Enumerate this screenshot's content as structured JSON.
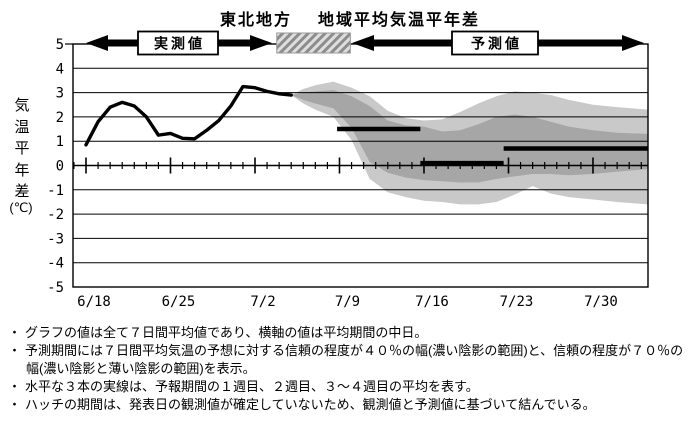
{
  "title": {
    "region": "東北地方",
    "name": "地域平均気温平年差"
  },
  "period_labels": {
    "observed": "実測値",
    "forecast": "予測値"
  },
  "y_axis": {
    "title_chars": [
      "気",
      "温",
      "平",
      "年",
      "差"
    ],
    "unit": "(℃)"
  },
  "notes_bullet": "・",
  "notes": [
    "グラフの値は全て７日間平均値であり、横軸の値は平均期間の中日。",
    "予測期間には７日間平均気温の予想に対する信頼の程度が４０％の幅(濃い陰影の範囲)と、信頼の程度が７０％の幅(濃い陰影と薄い陰影の範囲)を表示。",
    "水平な３本の実線は、予報期間の１週目、２週目、３～４週目の平均を表す。",
    "ハッチの期間は、発表日の観測値が確定していないため、観測値と予測値に基づいて結んでいる。"
  ],
  "chart_data": {
    "type": "line",
    "title": "東北地方 地域平均気温平年差",
    "ylabel": "気温平年差(℃)",
    "ylim": [
      -5,
      5
    ],
    "y_ticks": [
      5,
      4,
      3,
      2,
      1,
      0,
      -1,
      -2,
      -3,
      -4,
      -5
    ],
    "grid": true,
    "x_tick_labels": [
      "6/18",
      "6/25",
      "7/2",
      "7/9",
      "7/16",
      "7/23",
      "7/30"
    ],
    "x_tick_days": [
      0,
      7,
      14,
      21,
      28,
      35,
      42
    ],
    "x_day_range": [
      -1,
      46.55
    ],
    "observed": {
      "name": "実測値(7日間平均気温平年差)",
      "days": [
        0,
        1,
        2,
        3,
        4,
        5,
        6,
        7,
        8,
        9,
        10,
        11,
        12,
        13,
        14,
        15,
        16,
        17
      ],
      "values": [
        0.85,
        1.8,
        2.4,
        2.6,
        2.45,
        2.0,
        1.25,
        1.32,
        1.12,
        1.1,
        1.45,
        1.85,
        2.45,
        3.25,
        3.2,
        3.05,
        2.95,
        2.9
      ]
    },
    "forecast_bands": {
      "name_40": "信頼度４０％の幅(濃い陰影)",
      "name_70": "信頼度７０％の幅(濃い陰影と薄い陰影)",
      "days": [
        17,
        18,
        19,
        20.5,
        22,
        23.5,
        25,
        26.5,
        28,
        29.5,
        31,
        32.5,
        34,
        35.5,
        37,
        38.5,
        40,
        42,
        44,
        46.55
      ],
      "light_top": [
        2.9,
        3.15,
        3.3,
        3.45,
        3.2,
        2.85,
        2.25,
        1.95,
        1.85,
        1.9,
        2.2,
        2.55,
        2.85,
        3.05,
        3.0,
        2.9,
        2.7,
        2.5,
        2.4,
        2.3
      ],
      "dark_top": [
        2.9,
        3.0,
        3.05,
        3.1,
        2.85,
        2.45,
        1.85,
        1.65,
        1.6,
        1.4,
        1.45,
        1.7,
        2.0,
        2.1,
        2.0,
        1.8,
        1.6,
        1.45,
        1.35,
        1.3
      ],
      "dark_bottom": [
        2.9,
        2.7,
        2.55,
        2.35,
        1.55,
        0.15,
        -0.3,
        -0.5,
        -0.6,
        -0.65,
        -0.7,
        -0.7,
        -0.55,
        -0.45,
        -0.35,
        -0.35,
        -0.4,
        -0.35,
        -0.25,
        -0.15
      ],
      "light_bottom": [
        2.9,
        2.55,
        2.3,
        2.0,
        1.05,
        -0.55,
        -1.1,
        -1.3,
        -1.45,
        -1.5,
        -1.6,
        -1.6,
        -1.5,
        -1.2,
        -0.85,
        -1.15,
        -1.3,
        -1.4,
        -1.5,
        -1.6
      ]
    },
    "week_means": [
      {
        "label": "１週目平均",
        "from_day": 20.8,
        "to_day": 27.7,
        "value": 1.5
      },
      {
        "label": "２週目平均",
        "from_day": 27.7,
        "to_day": 34.6,
        "value": 0.1
      },
      {
        "label": "３～４週目平均",
        "from_day": 34.6,
        "to_day": 46.55,
        "value": 0.7
      }
    ],
    "hatch_period": {
      "from_day": 15.8,
      "to_day": 21.9
    },
    "colors": {
      "band_light": "#c9c9c9",
      "band_dark": "#a6a6a6",
      "line": "#000000",
      "hatch_bg": "#dedede",
      "hatch_stripe": "#8c8c8c"
    }
  }
}
